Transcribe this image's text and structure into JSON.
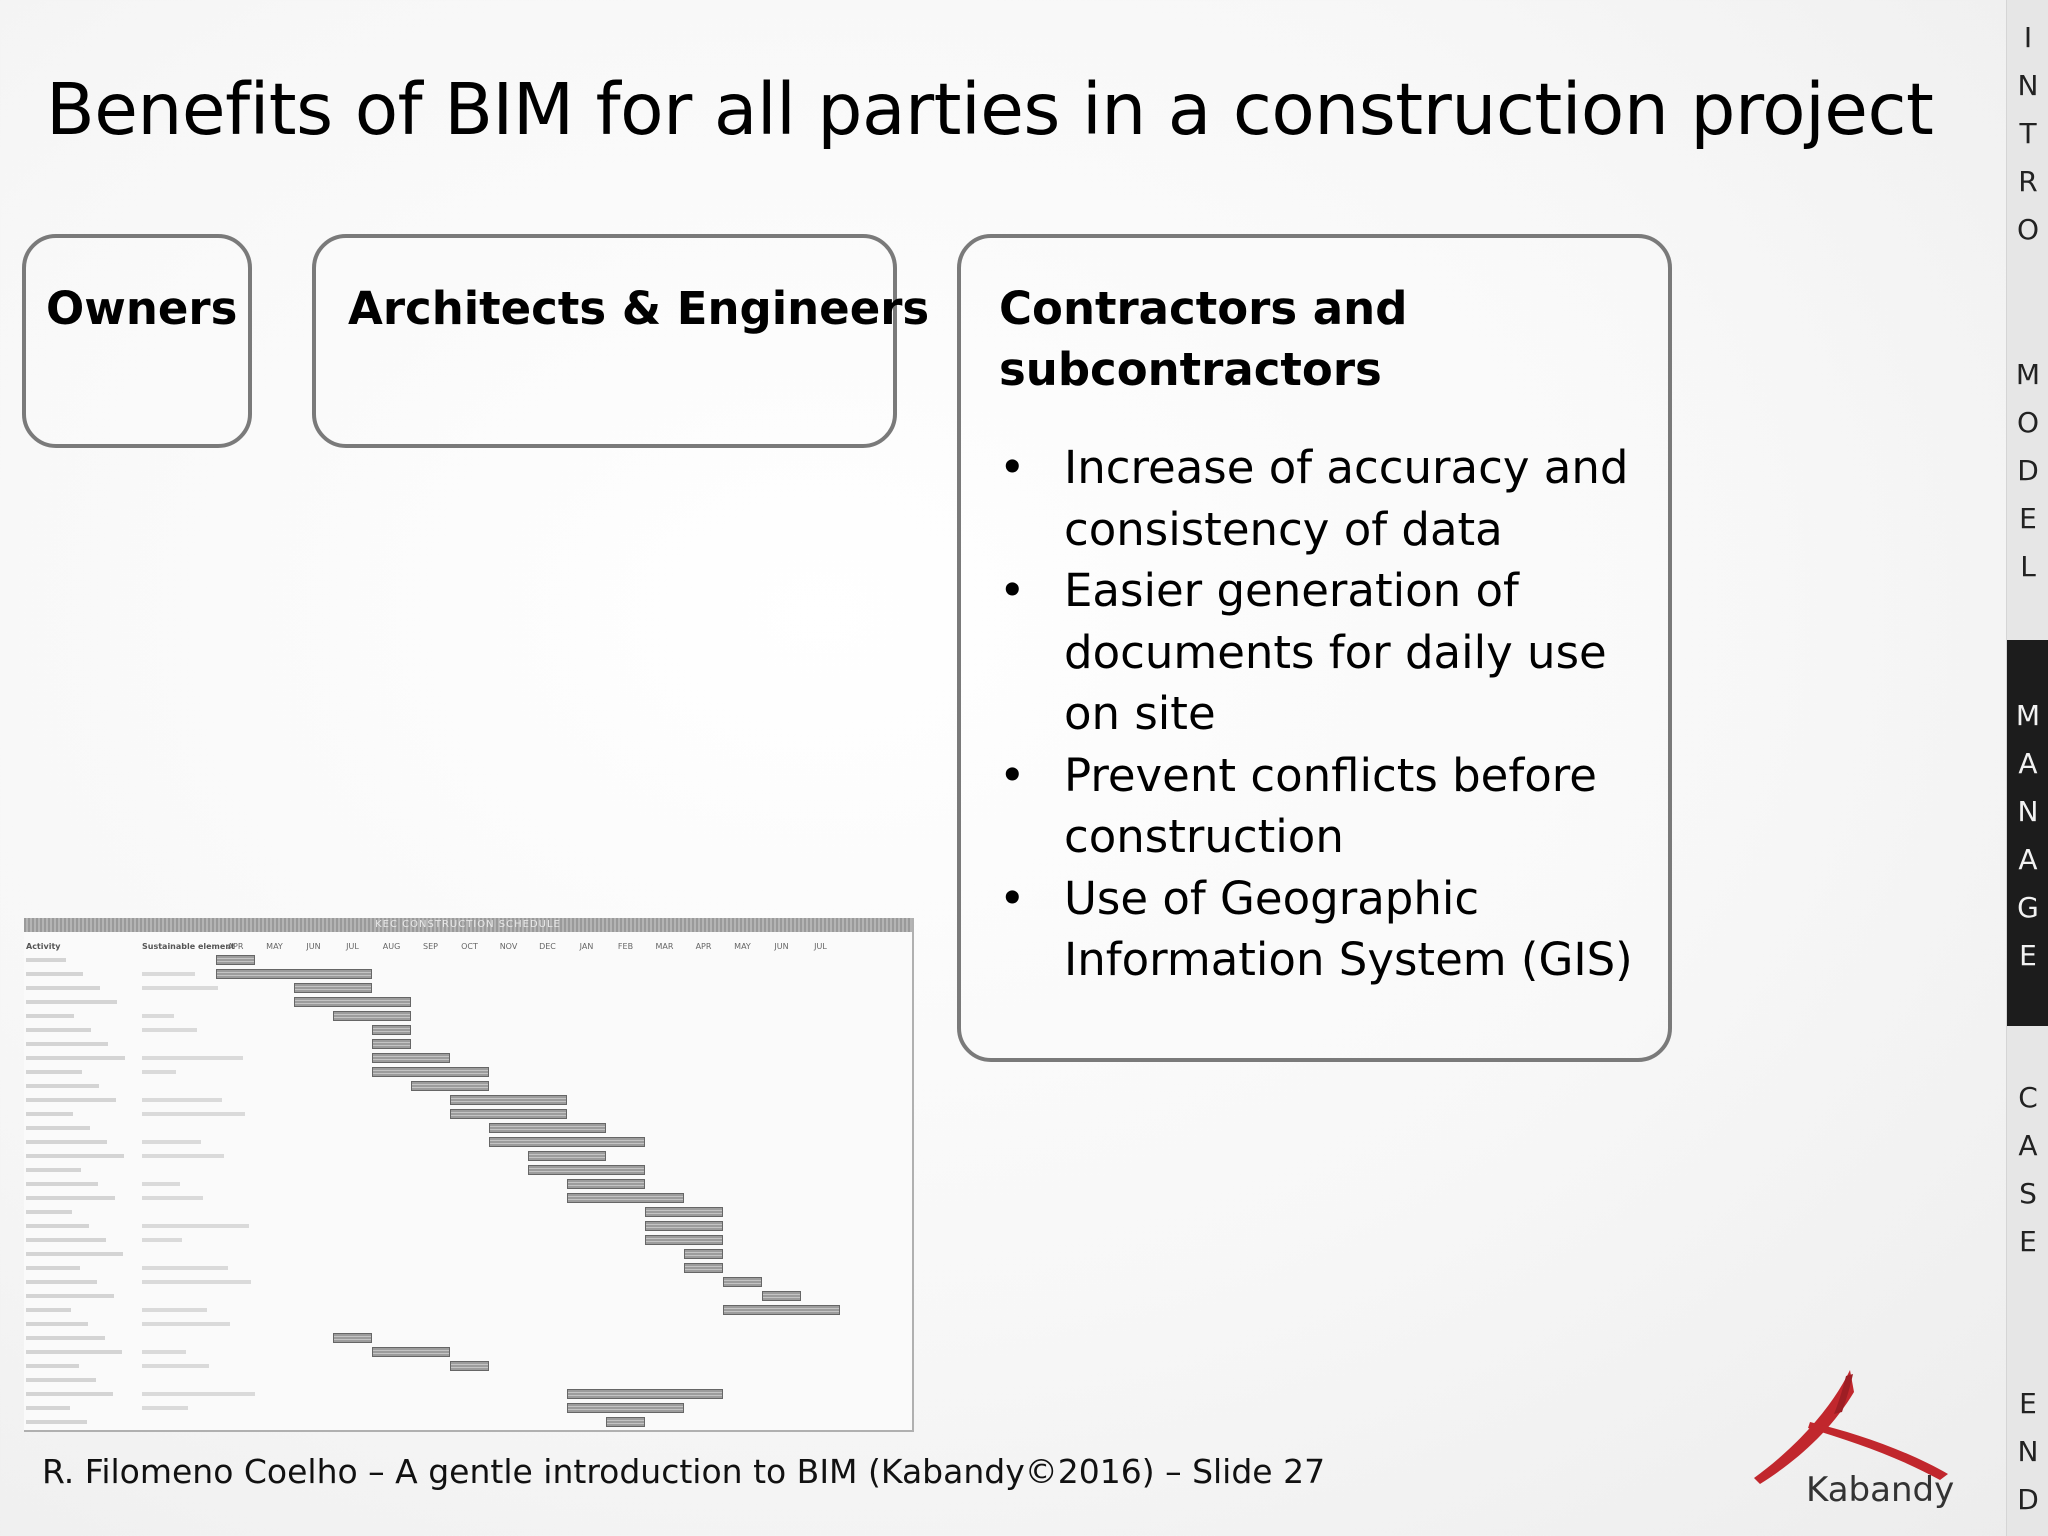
{
  "slide": {
    "title": "Benefits of BIM for all parties in a construction project",
    "footer": "R. Filomeno Coelho – A gentle introduction to BIM (Kabandy©2016) – Slide 27"
  },
  "boxes": {
    "owners": {
      "heading": "Owners"
    },
    "architects": {
      "heading": "Architects & Engineers"
    },
    "contractors": {
      "heading": "Contractors and subcontractors",
      "bullets": [
        "Increase of accuracy and consistency of data",
        "Easier generation of documents for daily use on site",
        "Prevent conflicts before construction",
        "Use of Geographic Information System (GIS)"
      ]
    }
  },
  "gantt_image": {
    "title": "KEC CONSTRUCTION SCHEDULE",
    "col_activity": "Activity",
    "col_sustainable": "Sustainable element",
    "months": [
      "APR",
      "MAY",
      "JUN",
      "JUL",
      "AUG",
      "SEP",
      "OCT",
      "NOV",
      "DEC",
      "JAN",
      "FEB",
      "MAR",
      "APR",
      "MAY",
      "JUN",
      "JUL"
    ]
  },
  "logo": {
    "text": "Kabandy",
    "color": "#c1272d"
  },
  "sidebar": {
    "sections": [
      {
        "name": "intro",
        "letters": [
          "I",
          "N",
          "T",
          "R",
          "O"
        ],
        "active": false
      },
      {
        "name": "model",
        "letters": [
          "M",
          "O",
          "D",
          "E",
          "L"
        ],
        "active": false
      },
      {
        "name": "manage",
        "letters": [
          "M",
          "A",
          "N",
          "A",
          "G",
          "E"
        ],
        "active": true
      },
      {
        "name": "case",
        "letters": [
          "C",
          "A",
          "S",
          "E"
        ],
        "active": false
      },
      {
        "name": "end",
        "letters": [
          "E",
          "N",
          "D"
        ],
        "active": false
      }
    ]
  }
}
